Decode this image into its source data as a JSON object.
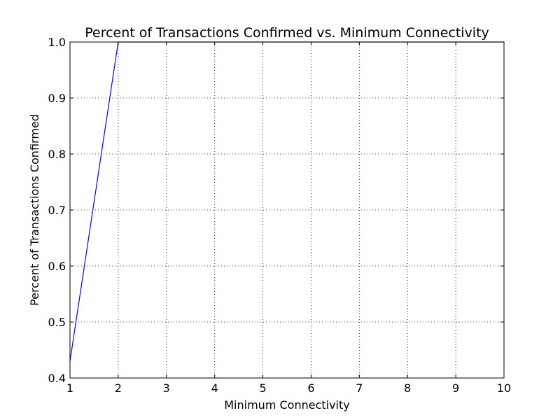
{
  "chart_data": {
    "type": "line",
    "title": "Percent of Transactions Confirmed vs. Minimum Connectivity",
    "xlabel": "Minimum Connectivity",
    "ylabel": "Percent of Transactions Confirmed",
    "xlim": [
      1,
      10
    ],
    "ylim": [
      0.4,
      1.0
    ],
    "xticks": [
      "1",
      "2",
      "3",
      "4",
      "5",
      "6",
      "7",
      "8",
      "9",
      "10"
    ],
    "yticks": [
      "0.4",
      "0.5",
      "0.6",
      "0.7",
      "0.8",
      "0.9",
      "1.0"
    ],
    "grid": true,
    "series": [
      {
        "color": "#0000ff",
        "x": [
          1,
          2,
          3,
          4,
          5,
          6,
          7,
          8,
          9,
          10
        ],
        "y": [
          0.43,
          1.0,
          1.0,
          1.0,
          1.0,
          1.0,
          1.0,
          1.0,
          1.0,
          1.0
        ]
      }
    ]
  }
}
